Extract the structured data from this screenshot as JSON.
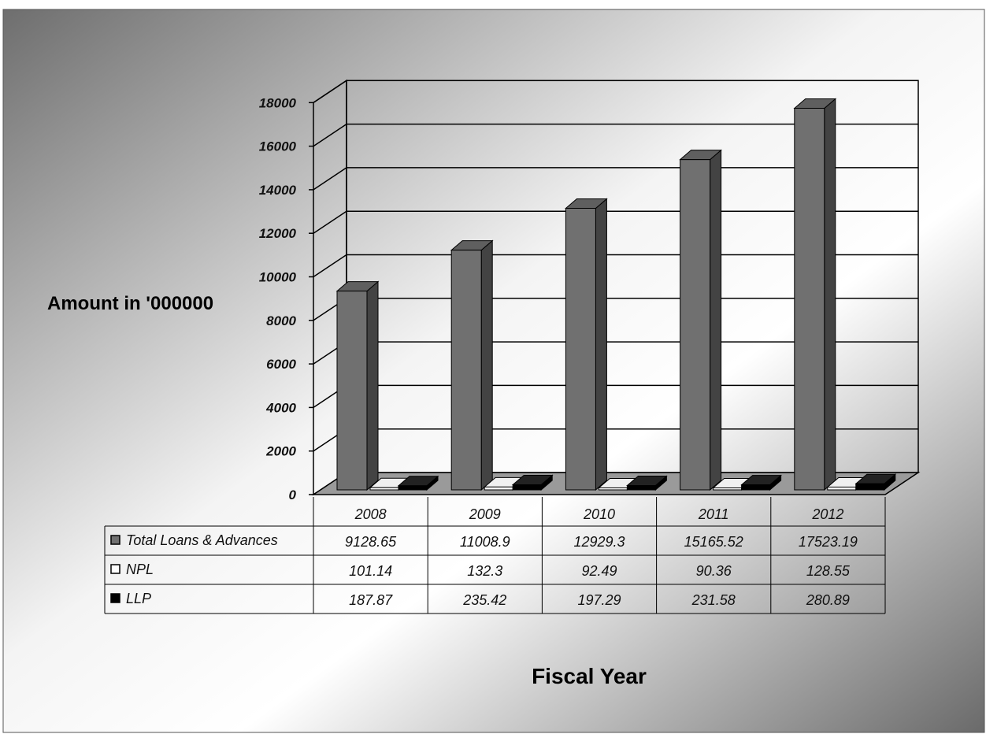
{
  "chart_data": {
    "type": "bar",
    "title": "",
    "xlabel": "Fiscal Year",
    "ylabel": "Amount in '000000",
    "categories": [
      "2008",
      "2009",
      "2010",
      "2011",
      "2012"
    ],
    "ylim": [
      0,
      18000
    ],
    "yticks": [
      "0",
      "2000",
      "4000",
      "6000",
      "8000",
      "10000",
      "12000",
      "14000",
      "16000",
      "18000"
    ],
    "grid": true,
    "legend": "data-table",
    "series": [
      {
        "name": "Total Loans & Advances",
        "values": [
          9128.65,
          11008.9,
          12929.3,
          15165.52,
          17523.19
        ],
        "labels": [
          "9128.65",
          "11008.9",
          "12929.3",
          "15165.52",
          "17523.19"
        ],
        "color": "#707070"
      },
      {
        "name": "NPL",
        "values": [
          101.14,
          132.3,
          92.49,
          90.36,
          128.55
        ],
        "labels": [
          "101.14",
          "132.3",
          "92.49",
          "90.36",
          "128.55"
        ],
        "color": "#ffffff"
      },
      {
        "name": "LLP",
        "values": [
          187.87,
          235.42,
          197.29,
          231.58,
          280.89
        ],
        "labels": [
          "187.87",
          "235.42",
          "197.29",
          "231.58",
          "280.89"
        ],
        "color": "#000000"
      }
    ]
  }
}
